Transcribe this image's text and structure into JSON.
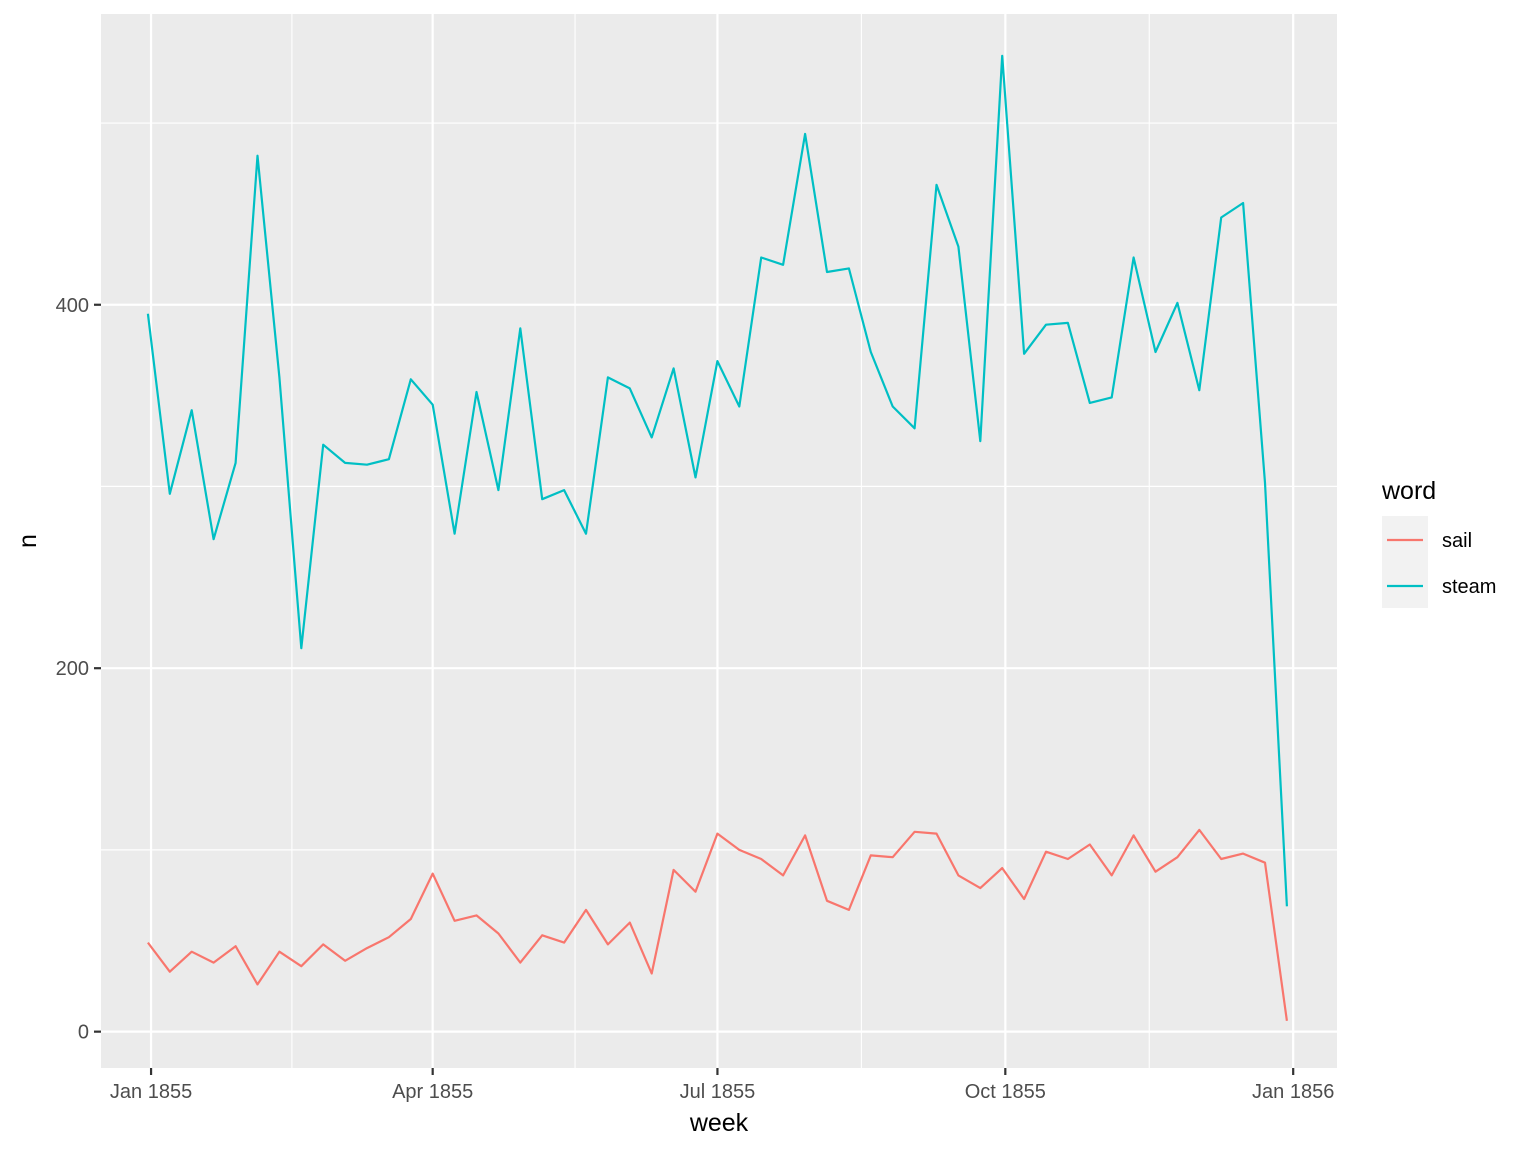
{
  "chart_data": {
    "type": "line",
    "xlabel": "week",
    "ylabel": "n",
    "x_ticks": [
      {
        "label": "Jan 1855",
        "date": "1855-01-01"
      },
      {
        "label": "Apr 1855",
        "date": "1855-04-01"
      },
      {
        "label": "Jul 1855",
        "date": "1855-07-01"
      },
      {
        "label": "Oct 1855",
        "date": "1855-10-01"
      },
      {
        "label": "Jan 1856",
        "date": "1856-01-01"
      }
    ],
    "y_ticks": [
      0,
      200,
      400
    ],
    "xlim": [
      "1854-12-16",
      "1856-01-15"
    ],
    "ylim": [
      -20,
      560
    ],
    "grid": true,
    "legend": {
      "title": "word",
      "position": "right"
    },
    "x": [
      "1854-12-31",
      "1855-01-07",
      "1855-01-14",
      "1855-01-21",
      "1855-01-28",
      "1855-02-04",
      "1855-02-11",
      "1855-02-18",
      "1855-02-25",
      "1855-03-04",
      "1855-03-11",
      "1855-03-18",
      "1855-03-25",
      "1855-04-01",
      "1855-04-08",
      "1855-04-15",
      "1855-04-22",
      "1855-04-29",
      "1855-05-06",
      "1855-05-13",
      "1855-05-20",
      "1855-05-27",
      "1855-06-03",
      "1855-06-10",
      "1855-06-17",
      "1855-06-24",
      "1855-07-01",
      "1855-07-08",
      "1855-07-15",
      "1855-07-22",
      "1855-07-29",
      "1855-08-05",
      "1855-08-12",
      "1855-08-19",
      "1855-08-26",
      "1855-09-02",
      "1855-09-09",
      "1855-09-16",
      "1855-09-23",
      "1855-09-30",
      "1855-10-07",
      "1855-10-14",
      "1855-10-21",
      "1855-10-28",
      "1855-11-04",
      "1855-11-11",
      "1855-11-18",
      "1855-11-25",
      "1855-12-02",
      "1855-12-09",
      "1855-12-16",
      "1855-12-23",
      "1855-12-30"
    ],
    "series": [
      {
        "name": "sail",
        "color": "#F8766D",
        "values": [
          49,
          33,
          44,
          38,
          47,
          26,
          44,
          36,
          48,
          39,
          46,
          52,
          62,
          87,
          61,
          64,
          54,
          38,
          53,
          49,
          67,
          48,
          60,
          32,
          89,
          77,
          109,
          100,
          95,
          86,
          108,
          72,
          67,
          97,
          96,
          110,
          109,
          86,
          79,
          90,
          73,
          99,
          95,
          103,
          86,
          108,
          88,
          96,
          111,
          95,
          98,
          93,
          6
        ]
      },
      {
        "name": "steam",
        "color": "#00BFC4",
        "values": [
          395,
          296,
          342,
          271,
          313,
          482,
          360,
          211,
          323,
          313,
          312,
          315,
          359,
          345,
          274,
          352,
          298,
          387,
          293,
          298,
          274,
          360,
          354,
          327,
          365,
          305,
          369,
          344,
          426,
          422,
          494,
          418,
          420,
          374,
          344,
          332,
          466,
          432,
          325,
          537,
          373,
          389,
          390,
          346,
          349,
          426,
          374,
          401,
          353,
          448,
          456,
          302,
          69
        ]
      }
    ]
  }
}
